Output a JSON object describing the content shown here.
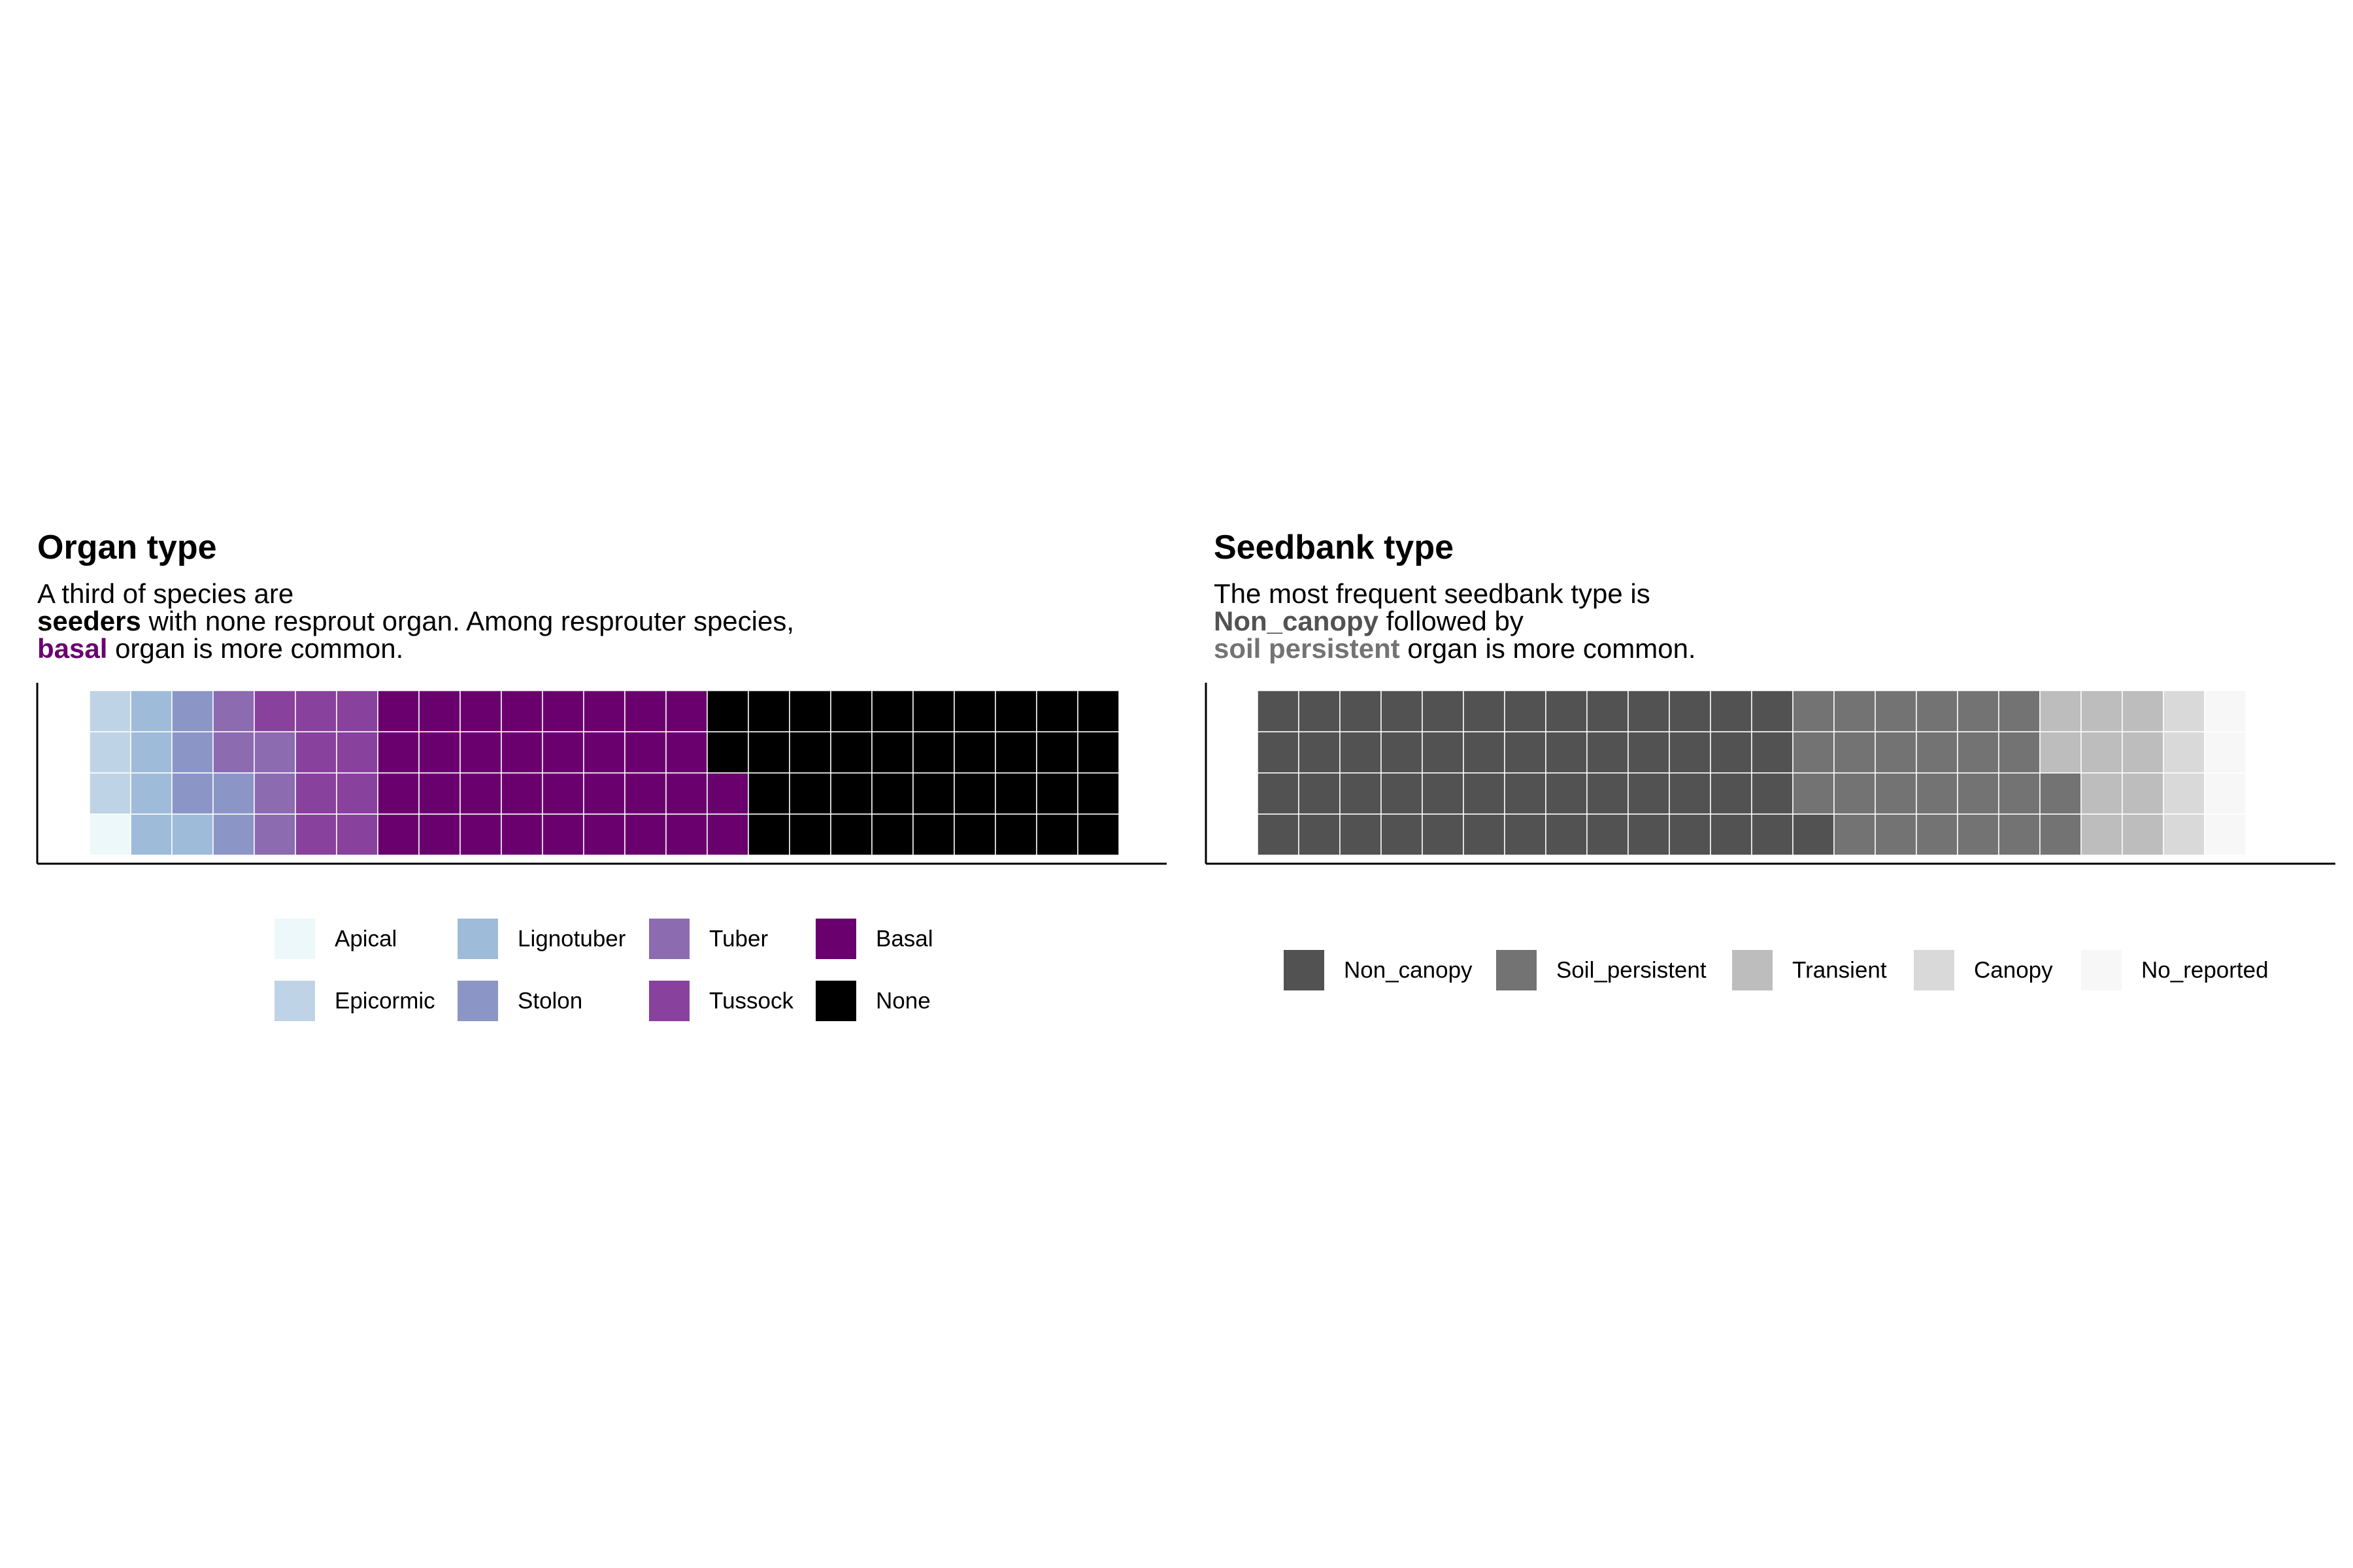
{
  "panels": [
    {
      "title": "Organ type",
      "subtitle": {
        "line1": "A third of species are",
        "line2": {
          "highlight": "seeders",
          "highlight_color": "#000000",
          "rest": " with none resprout organ. Among resprouter species,"
        },
        "line3": {
          "highlight": "basal",
          "highlight_color": "#6a006e",
          "rest": " organ is more common."
        }
      }
    },
    {
      "title": "Seedbank type",
      "subtitle": {
        "line1": "The most frequent seedbank type is",
        "line2": {
          "highlight": "Non_canopy",
          "highlight_color": "#525252",
          "rest": " followed by"
        },
        "line3": {
          "highlight": "soil persistent",
          "highlight_color": "#737373",
          "rest": " organ is more common."
        }
      }
    }
  ],
  "chart_data": [
    {
      "type": "waffle",
      "title": "Organ type",
      "rows": 4,
      "columns": 25,
      "fill_order": "column-wise, bottom to top",
      "categories": [
        "Apical",
        "Epicormic",
        "Lignotuber",
        "Stolon",
        "Tuber",
        "Tussock",
        "Basal",
        "None"
      ],
      "values": [
        1,
        3,
        5,
        5,
        5,
        9,
        34,
        38
      ],
      "colors": [
        "#edf8fb",
        "#bfd3e6",
        "#9ebcda",
        "#8c96c6",
        "#8c6bb1",
        "#88419d",
        "#6a006e",
        "#000000"
      ],
      "legend": {
        "position": "bottom",
        "columns": [
          [
            "Apical",
            "Epicormic"
          ],
          [
            "Lignotuber",
            "Stolon"
          ],
          [
            "Tuber",
            "Tussock"
          ],
          [
            "Basal",
            "None"
          ]
        ]
      }
    },
    {
      "type": "waffle",
      "title": "Seedbank type",
      "rows": 4,
      "columns": 25,
      "fill_order": "column-wise, bottom to top",
      "categories": [
        "Non_canopy",
        "Soil_persistent",
        "Transient",
        "Canopy",
        "No_reported"
      ],
      "values": [
        53,
        25,
        10,
        4,
        4
      ],
      "colors": [
        "#525252",
        "#737373",
        "#bdbdbd",
        "#d9d9d9",
        "#f7f7f7"
      ],
      "legend": {
        "position": "bottom",
        "columns": [
          [
            "Non_canopy"
          ],
          [
            "Soil_persistent"
          ],
          [
            "Transient"
          ],
          [
            "Canopy"
          ],
          [
            "No_reported"
          ]
        ]
      }
    }
  ]
}
